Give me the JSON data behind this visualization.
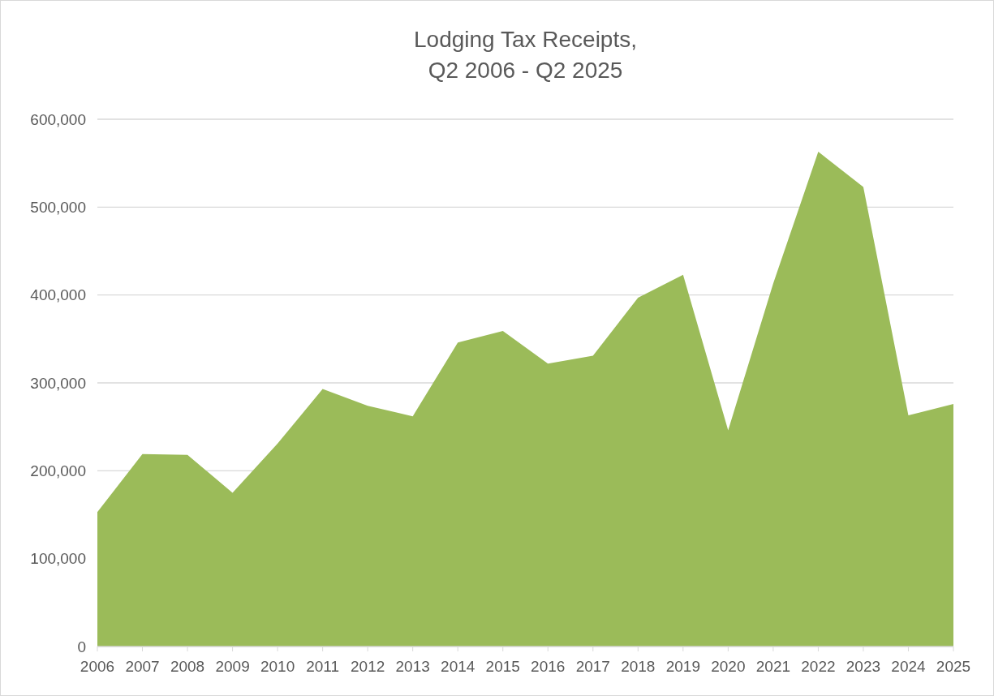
{
  "chart_data": {
    "type": "area",
    "title": "Lodging Tax Receipts,\nQ2 2006 - Q2 2025",
    "categories": [
      "2006",
      "2007",
      "2008",
      "2009",
      "2010",
      "2011",
      "2012",
      "2013",
      "2014",
      "2015",
      "2016",
      "2017",
      "2018",
      "2019",
      "2020",
      "2021",
      "2022",
      "2023",
      "2024",
      "2025"
    ],
    "series": [
      {
        "color": "#9bbb59",
        "values": [
          153000,
          219000,
          218000,
          175000,
          231000,
          293000,
          274000,
          262000,
          346000,
          359000,
          322000,
          331000,
          397000,
          423000,
          246000,
          413000,
          563000,
          523000,
          263000,
          276000
        ]
      }
    ],
    "ylim": [
      0,
      600000
    ],
    "yticks": [
      {
        "value": 0,
        "label": "0"
      },
      {
        "value": 100000,
        "label": "100,000"
      },
      {
        "value": 200000,
        "label": "200,000"
      },
      {
        "value": 300000,
        "label": "300,000"
      },
      {
        "value": 400000,
        "label": "400,000"
      },
      {
        "value": 500000,
        "label": "500,000"
      },
      {
        "value": 600000,
        "label": "600,000"
      }
    ],
    "grid": "y"
  }
}
